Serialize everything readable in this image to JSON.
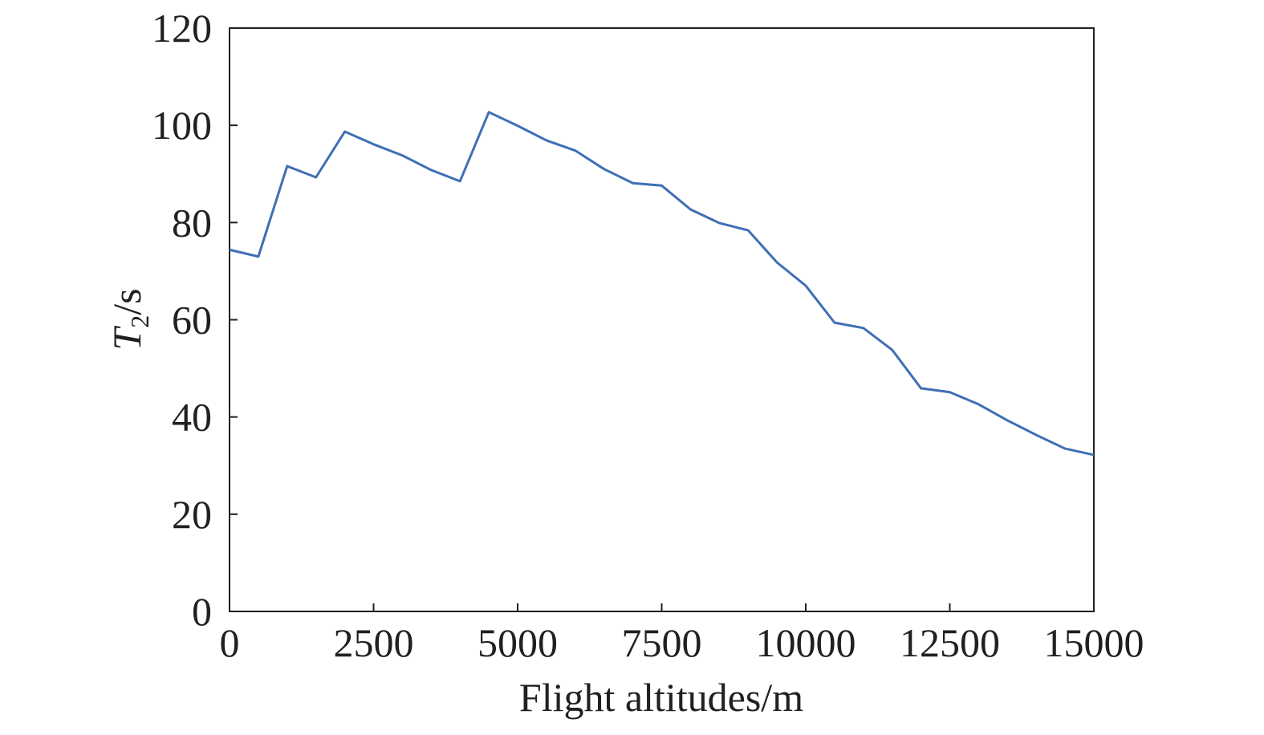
{
  "chart_data": {
    "type": "line",
    "x_label": "Flight altitudes/m",
    "y_label": {
      "symbol": "T",
      "subscript": "2",
      "unit": "/s"
    },
    "x": [
      0,
      500,
      1000,
      1500,
      2000,
      2500,
      3000,
      3500,
      4000,
      4500,
      5000,
      5500,
      6000,
      6500,
      7000,
      7500,
      8000,
      8500,
      9000,
      9500,
      10000,
      10500,
      11000,
      11500,
      12000,
      12500,
      13000,
      13500,
      14000,
      14500,
      15000
    ],
    "values": [
      74.4,
      73.0,
      91.6,
      89.3,
      98.7,
      96.1,
      93.8,
      90.8,
      88.5,
      102.7,
      99.9,
      96.9,
      94.8,
      91.0,
      88.1,
      87.6,
      82.7,
      79.9,
      78.4,
      71.8,
      67.0,
      59.4,
      58.3,
      53.8,
      45.9,
      45.1,
      42.6,
      39.3,
      36.3,
      33.5,
      32.2
    ],
    "color": "#3f6fb5",
    "xlim": [
      0,
      15000
    ],
    "xticks": [
      0,
      2500,
      5000,
      7500,
      10000,
      12500,
      15000
    ],
    "ylim": [
      0,
      120
    ],
    "yticks": [
      0,
      20,
      40,
      60,
      80,
      100,
      120
    ],
    "grid": false
  }
}
